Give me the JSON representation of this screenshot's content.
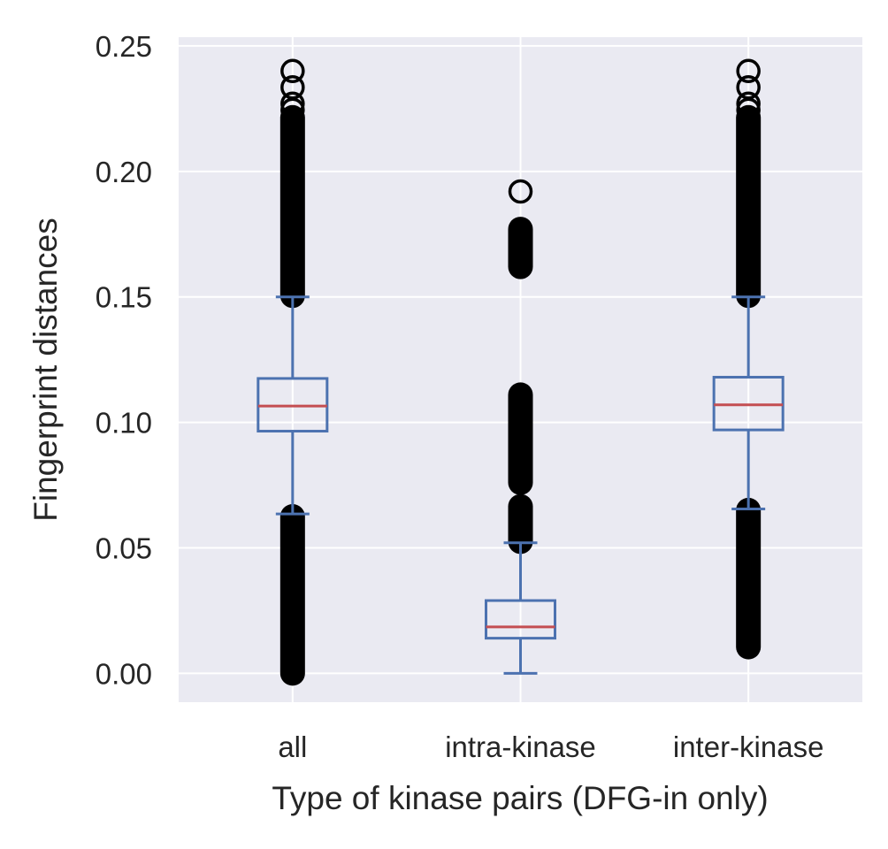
{
  "chart_data": {
    "type": "boxplot",
    "title": "",
    "xlabel": "Type of kinase pairs (DFG-in only)",
    "ylabel": "Fingerprint distances",
    "ylim": [
      -0.0115,
      0.2535
    ],
    "yticks": [
      0.0,
      0.05,
      0.1,
      0.15,
      0.2,
      0.25
    ],
    "ytick_labels": [
      "0.00",
      "0.05",
      "0.10",
      "0.15",
      "0.20",
      "0.25"
    ],
    "grid": true,
    "legend": "none",
    "categories": [
      "all",
      "intra-kinase",
      "inter-kinase"
    ],
    "boxes": [
      {
        "category": "all",
        "whisker_low": 0.0635,
        "q1": 0.0965,
        "median": 0.1065,
        "q3": 0.1175,
        "whisker_high": 0.15,
        "outliers_low": {
          "min": 0.0,
          "max": 0.0625
        },
        "outliers_high": {
          "min": 0.1505,
          "max": 0.2215
        },
        "outliers_extra": [
          0.2245,
          0.227,
          0.2335,
          0.24
        ]
      },
      {
        "category": "intra-kinase",
        "whisker_low": 0.0,
        "q1": 0.014,
        "median": 0.0185,
        "q3": 0.029,
        "whisker_high": 0.052,
        "outliers_groups": [
          {
            "min": 0.0525,
            "max": 0.0665
          },
          {
            "min": 0.076,
            "max": 0.111
          },
          {
            "min": 0.162,
            "max": 0.177
          }
        ],
        "outliers_extra": [
          0.192
        ]
      },
      {
        "category": "inter-kinase",
        "whisker_low": 0.0655,
        "q1": 0.097,
        "median": 0.107,
        "q3": 0.118,
        "whisker_high": 0.15,
        "outliers_low": {
          "min": 0.0105,
          "max": 0.065
        },
        "outliers_high": {
          "min": 0.1505,
          "max": 0.2215
        },
        "outliers_extra": [
          0.2245,
          0.227,
          0.2335,
          0.24
        ]
      }
    ],
    "colors": {
      "plot_background": "#eaeaf2",
      "grid": "#ffffff",
      "box": "#4c72b0",
      "median": "#c44e52",
      "outlier_edge": "#000000",
      "text": "#262626"
    }
  }
}
